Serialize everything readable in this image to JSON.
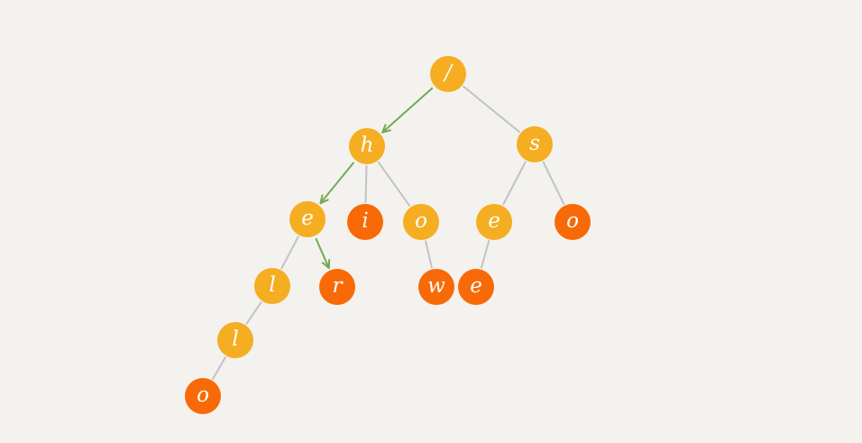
{
  "colors": {
    "background": "#f4f2ee",
    "inner_node": "#f5ad22",
    "leaf_node": "#f86a07",
    "edge": "#c2c2c2",
    "path_arrow": "#74a952"
  },
  "nodes": [
    {
      "id": "root",
      "label": "/",
      "type": "inner"
    },
    {
      "id": "h",
      "label": "h",
      "type": "inner"
    },
    {
      "id": "s",
      "label": "s",
      "type": "inner"
    },
    {
      "id": "he",
      "label": "e",
      "type": "inner"
    },
    {
      "id": "hi",
      "label": "i",
      "type": "leaf"
    },
    {
      "id": "ho",
      "label": "o",
      "type": "inner"
    },
    {
      "id": "se",
      "label": "e",
      "type": "inner"
    },
    {
      "id": "so",
      "label": "o",
      "type": "leaf"
    },
    {
      "id": "hel",
      "label": "l",
      "type": "inner"
    },
    {
      "id": "her",
      "label": "r",
      "type": "leaf"
    },
    {
      "id": "how",
      "label": "w",
      "type": "leaf"
    },
    {
      "id": "see",
      "label": "e",
      "type": "leaf"
    },
    {
      "id": "hell",
      "label": "l",
      "type": "inner"
    },
    {
      "id": "hello",
      "label": "o",
      "type": "leaf"
    }
  ],
  "edges": [
    {
      "from": "root",
      "to": "h",
      "highlighted": true
    },
    {
      "from": "root",
      "to": "s",
      "highlighted": false
    },
    {
      "from": "h",
      "to": "he",
      "highlighted": true
    },
    {
      "from": "h",
      "to": "hi",
      "highlighted": false
    },
    {
      "from": "h",
      "to": "ho",
      "highlighted": false
    },
    {
      "from": "s",
      "to": "se",
      "highlighted": false
    },
    {
      "from": "s",
      "to": "so",
      "highlighted": false
    },
    {
      "from": "he",
      "to": "hel",
      "highlighted": false
    },
    {
      "from": "he",
      "to": "her",
      "highlighted": true
    },
    {
      "from": "ho",
      "to": "how",
      "highlighted": false
    },
    {
      "from": "se",
      "to": "see",
      "highlighted": false
    },
    {
      "from": "hel",
      "to": "hell",
      "highlighted": false
    },
    {
      "from": "hell",
      "to": "hello",
      "highlighted": false
    }
  ]
}
